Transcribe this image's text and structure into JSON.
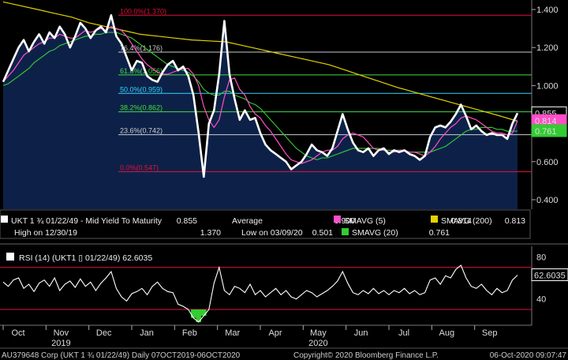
{
  "chart_data": {
    "type": "line",
    "price_panel": {
      "ylim": [
        0.35,
        1.45
      ],
      "y_ticks": [
        "1.400",
        "1.200",
        "1.000",
        "0.800",
        "0.600",
        "0.400"
      ],
      "series": [
        {
          "name": "UKT 1 ¾ 01/22/49 - Mid Yield To Maturity",
          "color": "#ffffff",
          "last": "0.855",
          "values": [
            1.02,
            1.08,
            1.14,
            1.2,
            1.24,
            1.18,
            1.23,
            1.27,
            1.22,
            1.28,
            1.25,
            1.31,
            1.27,
            1.2,
            1.26,
            1.33,
            1.3,
            1.25,
            1.29,
            1.31,
            1.28,
            1.37,
            1.26,
            1.22,
            1.15,
            1.08,
            1.13,
            1.12,
            1.05,
            1.03,
            1.02,
            1.07,
            1.11,
            1.13,
            1.08,
            1.1,
            1.05,
            0.95,
            0.75,
            0.52,
            0.8,
            0.87,
            1.06,
            1.34,
            1.06,
            0.93,
            0.82,
            0.87,
            0.82,
            0.83,
            0.75,
            0.69,
            0.66,
            0.64,
            0.62,
            0.6,
            0.56,
            0.58,
            0.6,
            0.64,
            0.69,
            0.66,
            0.65,
            0.63,
            0.67,
            0.76,
            0.85,
            0.77,
            0.7,
            0.66,
            0.65,
            0.67,
            0.63,
            0.66,
            0.67,
            0.64,
            0.66,
            0.65,
            0.66,
            0.64,
            0.63,
            0.61,
            0.63,
            0.73,
            0.78,
            0.79,
            0.78,
            0.81,
            0.85,
            0.9,
            0.84,
            0.77,
            0.79,
            0.76,
            0.74,
            0.75,
            0.74,
            0.74,
            0.72,
            0.8,
            0.855
          ]
        },
        {
          "name": "SMAVG (5)",
          "color": "#ff4fc8",
          "last": "0.814",
          "values": [
            1.02,
            1.05,
            1.08,
            1.12,
            1.16,
            1.18,
            1.2,
            1.22,
            1.23,
            1.25,
            1.25,
            1.27,
            1.26,
            1.25,
            1.25,
            1.27,
            1.29,
            1.28,
            1.29,
            1.3,
            1.29,
            1.31,
            1.3,
            1.29,
            1.26,
            1.22,
            1.18,
            1.14,
            1.11,
            1.09,
            1.07,
            1.06,
            1.06,
            1.07,
            1.08,
            1.09,
            1.09,
            1.06,
            1.0,
            0.89,
            0.82,
            0.78,
            0.82,
            0.94,
            1.03,
            1.04,
            0.98,
            0.95,
            0.89,
            0.85,
            0.83,
            0.79,
            0.76,
            0.72,
            0.68,
            0.64,
            0.61,
            0.6,
            0.59,
            0.6,
            0.61,
            0.63,
            0.65,
            0.66,
            0.66,
            0.68,
            0.72,
            0.74,
            0.75,
            0.74,
            0.73,
            0.7,
            0.67,
            0.66,
            0.66,
            0.65,
            0.65,
            0.66,
            0.66,
            0.65,
            0.65,
            0.64,
            0.63,
            0.65,
            0.68,
            0.72,
            0.75,
            0.78,
            0.8,
            0.83,
            0.84,
            0.83,
            0.82,
            0.8,
            0.78,
            0.76,
            0.75,
            0.75,
            0.74,
            0.75,
            0.814
          ]
        },
        {
          "name": "SMAVG (20)",
          "color": "#33cc33",
          "last": "0.761",
          "values": [
            1.0,
            1.01,
            1.03,
            1.05,
            1.07,
            1.09,
            1.12,
            1.14,
            1.16,
            1.18,
            1.19,
            1.21,
            1.22,
            1.23,
            1.24,
            1.25,
            1.26,
            1.26,
            1.27,
            1.27,
            1.28,
            1.28,
            1.28,
            1.27,
            1.26,
            1.25,
            1.23,
            1.21,
            1.19,
            1.17,
            1.15,
            1.13,
            1.11,
            1.1,
            1.09,
            1.08,
            1.07,
            1.05,
            1.02,
            0.98,
            0.96,
            0.95,
            0.95,
            0.97,
            0.97,
            0.95,
            0.94,
            0.93,
            0.91,
            0.9,
            0.88,
            0.85,
            0.82,
            0.79,
            0.76,
            0.73,
            0.7,
            0.67,
            0.65,
            0.63,
            0.62,
            0.61,
            0.62,
            0.62,
            0.63,
            0.64,
            0.65,
            0.66,
            0.67,
            0.67,
            0.67,
            0.67,
            0.67,
            0.67,
            0.66,
            0.66,
            0.66,
            0.66,
            0.66,
            0.65,
            0.65,
            0.65,
            0.65,
            0.65,
            0.66,
            0.67,
            0.68,
            0.7,
            0.72,
            0.74,
            0.76,
            0.77,
            0.77,
            0.78,
            0.78,
            0.78,
            0.77,
            0.77,
            0.76,
            0.76,
            0.761
          ]
        },
        {
          "name": "SMAVG (200)",
          "color": "#e6d200",
          "last": "0.813",
          "values": [
            1.44,
            1.42,
            1.4,
            1.38,
            1.36,
            1.33,
            1.31,
            1.29,
            1.27,
            1.26,
            1.25,
            1.24,
            1.235,
            1.23,
            1.21,
            1.19,
            1.17,
            1.15,
            1.13,
            1.11,
            1.08,
            1.05,
            1.02,
            0.99,
            0.965,
            0.94,
            0.915,
            0.89,
            0.865,
            0.84,
            0.813
          ]
        }
      ],
      "fib_levels": [
        {
          "label": "100.0%(1.370)",
          "value": 1.37,
          "color": "#e0103a"
        },
        {
          "label": "76.4%(1.176)",
          "value": 1.176,
          "color": "#cccccc"
        },
        {
          "label": "61.8%(1.056)",
          "value": 1.056,
          "color": "#44dd44"
        },
        {
          "label": "50.0%(0.959)",
          "value": 0.959,
          "color": "#33d6ff"
        },
        {
          "label": "38.2%(0.862)",
          "value": 0.862,
          "color": "#44dd44"
        },
        {
          "label": "23.6%(0.742)",
          "value": 0.742,
          "color": "#cccccc"
        },
        {
          "label": "0.0%(0.547)",
          "value": 0.547,
          "color": "#e0103a"
        }
      ]
    },
    "legend": {
      "row1": [
        {
          "text": "UKT 1 ¾ 01/22/49 - Mid Yield To Maturity",
          "value": "0.855",
          "color": "#ffffff"
        },
        {
          "text": "Average",
          "value": "0.900",
          "color": ""
        },
        {
          "text": "SMAVG (5)",
          "value": "0.814",
          "color": "#ff4fc8"
        },
        {
          "text": "SMAVG (200)",
          "value": "0.813",
          "color": "#e6d200"
        }
      ],
      "row2": [
        {
          "text": "High on 12/30/19",
          "value": "1.370",
          "color": ""
        },
        {
          "text": "Low on 03/09/20",
          "value": "0.501",
          "color": ""
        },
        {
          "text": "SMAVG (20)",
          "value": "0.761",
          "color": "#33cc33"
        }
      ]
    },
    "rsi_panel": {
      "title": "RSI (14) (UKT1 ▯ 01/22/49)",
      "last": "62.6035",
      "ylim": [
        15,
        90
      ],
      "y_ticks": [
        "80",
        "60",
        "40"
      ],
      "thresholds": [
        70,
        30
      ],
      "values": [
        56,
        52,
        58,
        60,
        50,
        54,
        47,
        55,
        58,
        52,
        60,
        48,
        54,
        57,
        51,
        59,
        52,
        56,
        48,
        55,
        60,
        66,
        50,
        42,
        38,
        45,
        47,
        50,
        44,
        52,
        56,
        50,
        47,
        46,
        35,
        33,
        30,
        22,
        18,
        24,
        30,
        55,
        70,
        48,
        44,
        52,
        50,
        46,
        54,
        44,
        48,
        42,
        46,
        50,
        44,
        48,
        42,
        40,
        44,
        48,
        46,
        42,
        45,
        48,
        52,
        57,
        66,
        55,
        46,
        44,
        48,
        45,
        50,
        45,
        48,
        44,
        48,
        46,
        50,
        45,
        48,
        44,
        46,
        58,
        60,
        54,
        62,
        60,
        68,
        72,
        60,
        52,
        50,
        54,
        48,
        44,
        50,
        46,
        48,
        58,
        62.6
      ]
    },
    "x_axis": {
      "months": [
        "Oct",
        "Nov",
        "Dec",
        "Jan",
        "Feb",
        "Mar",
        "Apr",
        "May",
        "Jun",
        "Jul",
        "Aug",
        "Sep"
      ],
      "years": [
        {
          "label": "2019",
          "at_month": "Nov"
        },
        {
          "label": "2020",
          "at_month": "May"
        }
      ]
    },
    "footer": {
      "left": "AU379648 Corp (UKT 1 ¾ 01/22/49)  Daily 07OCT2019-06OCT2020",
      "center": "Copyright© 2020 Bloomberg Finance L.P.",
      "right": "06-Oct-2020 09:07:47"
    }
  }
}
